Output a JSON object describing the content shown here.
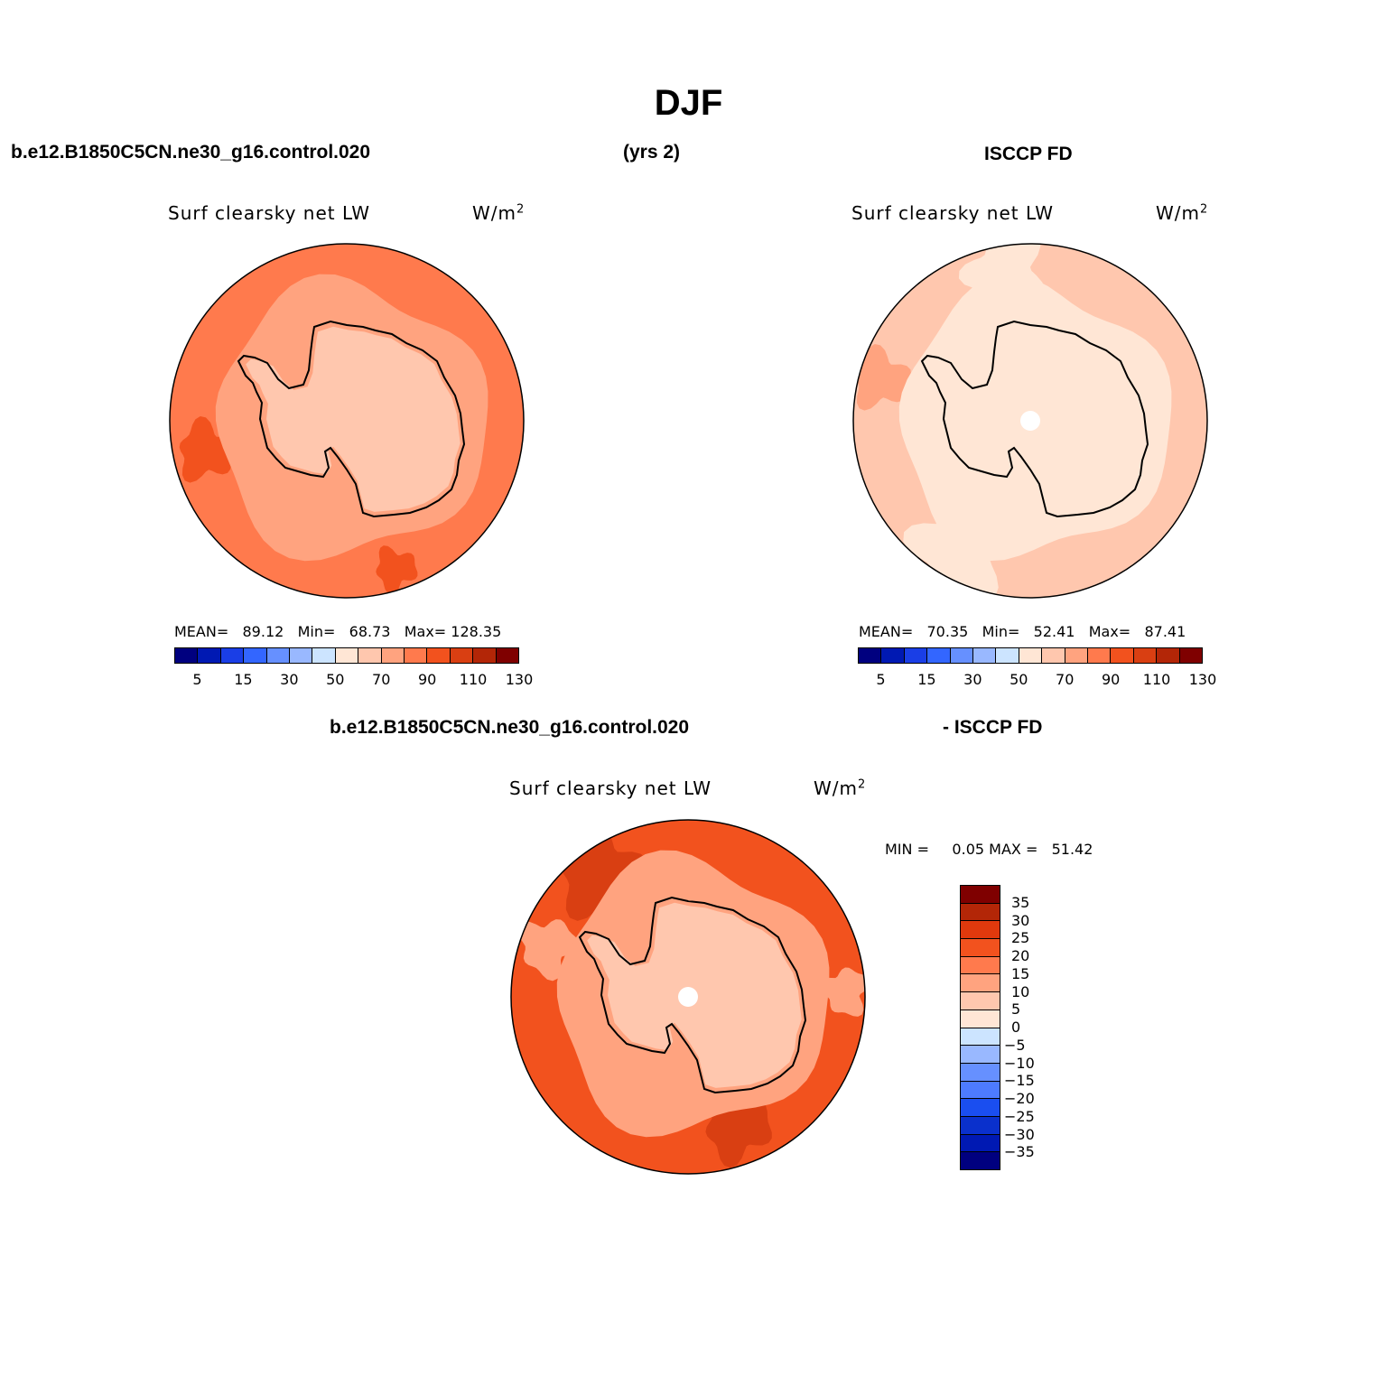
{
  "title": "DJF",
  "header": {
    "case_name": "b.e12.B1850C5CN.ne30_g16.control.020",
    "years": "(yrs 2)",
    "obs_name": "ISCCP FD"
  },
  "diff_header": {
    "case_name": "b.e12.B1850C5CN.ne30_g16.control.020",
    "obs_name": "- ISCCP FD"
  },
  "panels": [
    {
      "variable": "Surf clearsky net LW",
      "units": "W/m",
      "units_sup": "2",
      "stats": {
        "mean_label": "MEAN=",
        "mean": "89.12",
        "min_label": "Min=",
        "min": "68.73",
        "max_label": "Max=",
        "max": "128.35"
      }
    },
    {
      "variable": "Surf clearsky net LW",
      "units": "W/m",
      "units_sup": "2",
      "stats": {
        "mean_label": "MEAN=",
        "mean": "70.35",
        "min_label": "Min=",
        "min": "52.41",
        "max_label": "Max=",
        "max": "87.41"
      }
    },
    {
      "variable": "Surf clearsky net LW",
      "units": "W/m",
      "units_sup": "2",
      "stats": {
        "min_label": "MIN =",
        "min": "0.05",
        "max_label": "MAX =",
        "max": "51.42"
      }
    }
  ],
  "colorbar_abs": {
    "colors": [
      "#00007f",
      "#0019b3",
      "#1a3ee6",
      "#3366ff",
      "#6690ff",
      "#99b8ff",
      "#cce4ff",
      "#ffe6d5",
      "#ffc7ae",
      "#ffa37f",
      "#ff7a4d",
      "#f2521e",
      "#d93f12",
      "#b32607",
      "#7f0000"
    ],
    "ticks": [
      "5",
      "15",
      "30",
      "50",
      "70",
      "90",
      "110",
      "130"
    ]
  },
  "colorbar_diff": {
    "colors": [
      "#7f0000",
      "#b32607",
      "#e0390d",
      "#f2521e",
      "#ff7a4d",
      "#ffa37f",
      "#ffc7ae",
      "#ffe6d5",
      "#cce4ff",
      "#99b8ff",
      "#6690ff",
      "#4d7bff",
      "#1a4ef0",
      "#0a30cc",
      "#0019b3",
      "#00007f"
    ],
    "ticks": [
      "35",
      "30",
      "25",
      "20",
      "15",
      "10",
      "5",
      "0",
      "−5",
      "−10",
      "−15",
      "−20",
      "−25",
      "−30",
      "−35"
    ]
  },
  "map_colors": {
    "model": {
      "ocean": "#ff7a4d",
      "coast": "#ffa37f",
      "land": "#ffc7ae",
      "patch": "#f2521e"
    },
    "obs": {
      "ocean": "#ffc7ae",
      "coast": "#ffe6d5",
      "land": "#ffe6d5",
      "patch": "#cce4ff"
    },
    "diff": {
      "ocean": "#f2521e",
      "coast": "#ffa37f",
      "land": "#ffc7ae",
      "patch": "#d93f12"
    }
  }
}
